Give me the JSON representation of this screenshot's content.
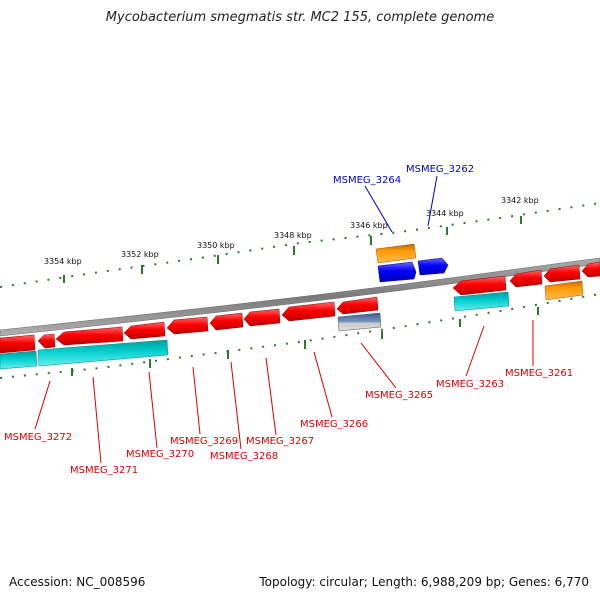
{
  "header": {
    "title": "Mycobacterium smegmatis str. MC2 155, complete genome"
  },
  "footer": {
    "accession": "Accession: NC_008596",
    "stats": "Topology: circular; Length: 6,988,209 bp; Genes: 6,770"
  },
  "scale": {
    "tick_labels": [
      "3354 kbp",
      "3352 kbp",
      "3350 kbp",
      "3348 kbp",
      "3346 kbp",
      "3344 kbp",
      "3342 kbp"
    ]
  },
  "genes": [
    {
      "name": "MSMEG_3261",
      "strand": "reverse",
      "color": "#ff0000"
    },
    {
      "name": "MSMEG_3262",
      "strand": "forward",
      "color": "#0000ff"
    },
    {
      "name": "MSMEG_3263",
      "strand": "reverse",
      "color": "#ff0000"
    },
    {
      "name": "MSMEG_3264",
      "strand": "forward",
      "color": "#0000ff"
    },
    {
      "name": "MSMEG_3265",
      "strand": "reverse",
      "color": "#ff0000"
    },
    {
      "name": "MSMEG_3266",
      "strand": "reverse",
      "color": "#ff0000"
    },
    {
      "name": "MSMEG_3267",
      "strand": "reverse",
      "color": "#ff0000"
    },
    {
      "name": "MSMEG_3268",
      "strand": "reverse",
      "color": "#ff0000"
    },
    {
      "name": "MSMEG_3269",
      "strand": "reverse",
      "color": "#ff0000"
    },
    {
      "name": "MSMEG_3270",
      "strand": "reverse",
      "color": "#ff0000"
    },
    {
      "name": "MSMEG_3271",
      "strand": "reverse",
      "color": "#ff0000"
    },
    {
      "name": "MSMEG_3272",
      "strand": "reverse",
      "color": "#ff0000"
    }
  ],
  "colors": {
    "backbone": "#808080",
    "cds_reverse": "#ff0000",
    "cds_forward": "#0000ff",
    "feature_teal": "#00cccc",
    "feature_orange": "#ff9900",
    "feature_steel": "#5577aa",
    "tick": "#2a7a2a"
  }
}
